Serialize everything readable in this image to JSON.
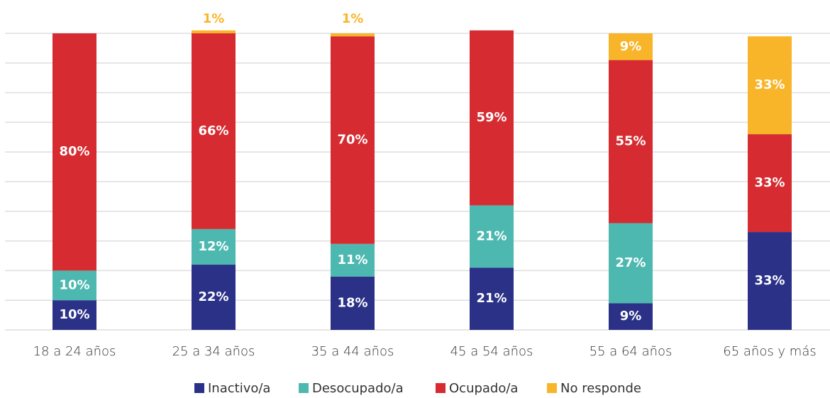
{
  "chart_data": {
    "type": "stacked_bar",
    "categories": [
      "18 a 24 años",
      "25 a 34 años",
      "35 a 44 años",
      "45 a 54 años",
      "55 a 64 años",
      "65 años y más"
    ],
    "series": [
      {
        "name": "Inactivo/a",
        "color": "#2b3187",
        "values": [
          10,
          22,
          18,
          21,
          9,
          33
        ],
        "value_labels": [
          "10%",
          "22%",
          "18%",
          "21%",
          "9%",
          "33%"
        ]
      },
      {
        "name": "Desocupado/a",
        "color": "#4db8b0",
        "values": [
          10,
          12,
          11,
          21,
          27,
          null
        ],
        "value_labels": [
          "10%",
          "12%",
          "11%",
          "21%",
          "27%",
          null
        ]
      },
      {
        "name": "Ocupado/a",
        "color": "#d62b30",
        "values": [
          80,
          66,
          70,
          59,
          55,
          33
        ],
        "value_labels": [
          "80%",
          "66%",
          "70%",
          "59%",
          "55%",
          "33%"
        ]
      },
      {
        "name": "No responde",
        "color": "#f9b52a",
        "values": [
          null,
          1,
          1,
          null,
          9,
          33
        ],
        "value_labels": [
          null,
          "1%",
          "1%",
          null,
          "9%",
          "33%"
        ]
      }
    ],
    "ylim": [
      0,
      100
    ],
    "yticks": [
      0,
      10,
      20,
      30,
      40,
      50,
      60,
      70,
      80,
      90,
      100
    ],
    "grid": true,
    "legend": "bottom"
  }
}
